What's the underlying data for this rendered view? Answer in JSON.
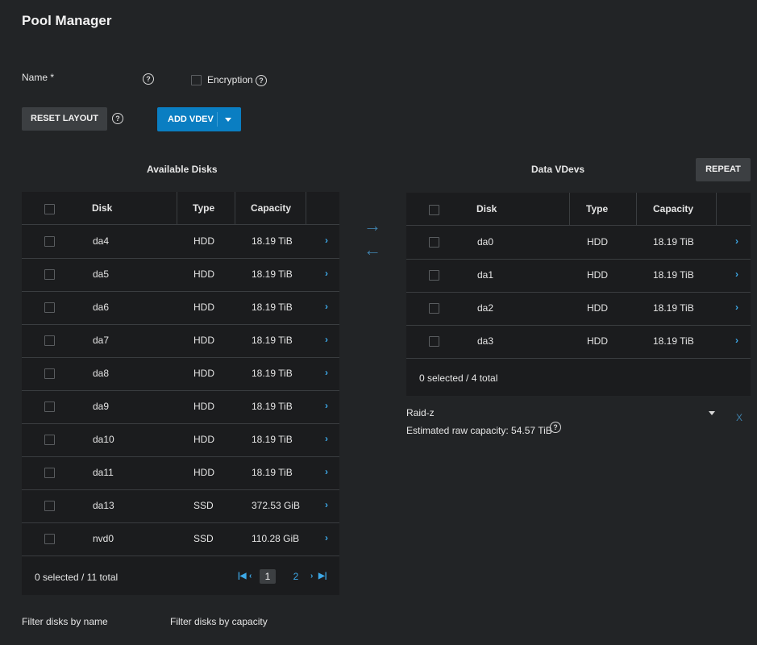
{
  "header": {
    "title": "Pool Manager"
  },
  "form": {
    "name_label": "Name *",
    "encryption_label": "Encryption",
    "encryption_checked": false
  },
  "toolbar": {
    "reset_layout_label": "RESET LAYOUT",
    "add_vdev_label": "ADD VDEV"
  },
  "available": {
    "title": "Available Disks",
    "columns": [
      "Disk",
      "Type",
      "Capacity"
    ],
    "rows": [
      {
        "disk": "da4",
        "type": "HDD",
        "capacity": "18.19 TiB"
      },
      {
        "disk": "da5",
        "type": "HDD",
        "capacity": "18.19 TiB"
      },
      {
        "disk": "da6",
        "type": "HDD",
        "capacity": "18.19 TiB"
      },
      {
        "disk": "da7",
        "type": "HDD",
        "capacity": "18.19 TiB"
      },
      {
        "disk": "da8",
        "type": "HDD",
        "capacity": "18.19 TiB"
      },
      {
        "disk": "da9",
        "type": "HDD",
        "capacity": "18.19 TiB"
      },
      {
        "disk": "da10",
        "type": "HDD",
        "capacity": "18.19 TiB"
      },
      {
        "disk": "da11",
        "type": "HDD",
        "capacity": "18.19 TiB"
      },
      {
        "disk": "da13",
        "type": "SSD",
        "capacity": "372.53 GiB"
      },
      {
        "disk": "nvd0",
        "type": "SSD",
        "capacity": "110.28 GiB"
      }
    ],
    "footer": "0 selected / 11 total",
    "pages": [
      "1",
      "2"
    ],
    "current_page": "1"
  },
  "data_vdevs": {
    "title": "Data VDevs",
    "repeat_label": "REPEAT",
    "columns": [
      "Disk",
      "Type",
      "Capacity"
    ],
    "rows": [
      {
        "disk": "da0",
        "type": "HDD",
        "capacity": "18.19 TiB"
      },
      {
        "disk": "da1",
        "type": "HDD",
        "capacity": "18.19 TiB"
      },
      {
        "disk": "da2",
        "type": "HDD",
        "capacity": "18.19 TiB"
      },
      {
        "disk": "da3",
        "type": "HDD",
        "capacity": "18.19 TiB"
      }
    ],
    "footer": "0 selected / 4 total",
    "layout_value": "Raid-z",
    "remove_label": "X",
    "estimated_capacity": "Estimated raw capacity: 54.57 TiB"
  },
  "filters": {
    "by_name": "Filter disks by name",
    "by_capacity": "Filter disks by capacity"
  },
  "icons": {
    "help": "help-circle-icon",
    "arrow_right": "arrow-right-icon",
    "arrow_left": "arrow-left-icon",
    "row_expand": "chevron-right-icon",
    "dropdown": "caret-down-icon"
  },
  "colors": {
    "background": "#222426",
    "table_bg": "#1b1c1e",
    "accent": "#0a7ec2",
    "link": "#3da9e8"
  }
}
